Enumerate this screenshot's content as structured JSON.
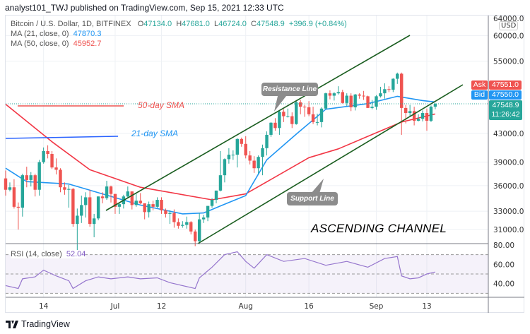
{
  "header": {
    "published": "analyst101_TWJ published on TradingView.com, Sep 15, 2021 12:33 UTC"
  },
  "legend": {
    "symbol": "Bitcoin / U.S. Dollar, 1D, BITFINEX",
    "o_label": "O",
    "o": "47134.0",
    "h_label": "H",
    "h": "47681.0",
    "l_label": "L",
    "l": "46724.0",
    "c_label": "C",
    "c": "47548.9",
    "change": "+396.9 (+0.84%)",
    "ma21_label": "MA (21, close, 0)",
    "ma21": "47870.3",
    "ma50_label": "MA (50, close, 0)",
    "ma50": "45952.7",
    "rsi_label": "RSI (14, close)",
    "rsi": "52.04"
  },
  "price_axis": {
    "currency": "USD",
    "ticks": [
      "64000.0",
      "60000.0",
      "55000.0",
      "43000.0",
      "39000.0",
      "36000.0",
      "33000.0",
      "31000.0"
    ],
    "tick_values": [
      64000,
      60000,
      55000,
      43000,
      39000,
      36000,
      33000,
      31000
    ]
  },
  "rsi_axis": {
    "ticks": [
      "80.00",
      "60.00",
      "40.00"
    ],
    "tick_values": [
      80,
      60,
      40
    ],
    "bands": [
      70,
      50,
      30
    ]
  },
  "time_axis": {
    "ticks": [
      {
        "label": "14",
        "date": "2021-06-14"
      },
      {
        "label": "Jul",
        "date": "2021-07-01"
      },
      {
        "label": "12",
        "date": "2021-07-12"
      },
      {
        "label": "Aug",
        "date": "2021-08-01"
      },
      {
        "label": "16",
        "date": "2021-08-16"
      },
      {
        "label": "Sep",
        "date": "2021-09-01"
      },
      {
        "label": "13",
        "date": "2021-09-13"
      }
    ]
  },
  "quotes": {
    "ask_label": "Ask",
    "ask": "47551.0",
    "bid_label": "Bid",
    "bid": "47550.0",
    "last": "47548.9",
    "countdown": "11:26:42"
  },
  "annotations": {
    "resistance": "Resistance Line",
    "support": "Support Line",
    "title": "ASCENDING CHANNEL",
    "sma50": "50-day SMA",
    "sma21": "21-day SMA"
  },
  "footer": {
    "brand": "TradingView"
  },
  "colors": {
    "up": "#26a69a",
    "down": "#ef5350",
    "ma21": "#2196f3",
    "ma50": "#f23645",
    "rsi": "#9575cd",
    "channel": "#1b5e20",
    "ask": "#ef5350",
    "bid": "#2196f3"
  },
  "chart_data": {
    "type": "candlestick",
    "scale": "log",
    "candles": [
      [
        "2021-06-05",
        36900,
        37900,
        34800,
        35500
      ],
      [
        "2021-06-06",
        35500,
        36400,
        35300,
        35800
      ],
      [
        "2021-06-07",
        35800,
        36800,
        33300,
        33500
      ],
      [
        "2021-06-08",
        33500,
        34000,
        31000,
        33400
      ],
      [
        "2021-06-09",
        33400,
        37500,
        32400,
        37300
      ],
      [
        "2021-06-10",
        37300,
        38400,
        35800,
        36700
      ],
      [
        "2021-06-11",
        36700,
        37700,
        35900,
        37300
      ],
      [
        "2021-06-12",
        37300,
        37500,
        34700,
        35500
      ],
      [
        "2021-06-13",
        35500,
        39300,
        34800,
        39000
      ],
      [
        "2021-06-14",
        39000,
        41000,
        38800,
        40500
      ],
      [
        "2021-06-15",
        40500,
        41300,
        39500,
        40100
      ],
      [
        "2021-06-16",
        40100,
        40500,
        38100,
        38300
      ],
      [
        "2021-06-17",
        38300,
        39500,
        37400,
        38000
      ],
      [
        "2021-06-18",
        38000,
        38200,
        35200,
        35800
      ],
      [
        "2021-06-19",
        35800,
        36400,
        34900,
        35500
      ],
      [
        "2021-06-20",
        35500,
        36100,
        33400,
        35600
      ],
      [
        "2021-06-21",
        35600,
        35700,
        31300,
        31600
      ],
      [
        "2021-06-22",
        31600,
        33300,
        28800,
        32500
      ],
      [
        "2021-06-23",
        32500,
        34800,
        31700,
        33700
      ],
      [
        "2021-06-24",
        33700,
        35200,
        32300,
        34600
      ],
      [
        "2021-06-25",
        34600,
        35500,
        31300,
        31600
      ],
      [
        "2021-06-26",
        31600,
        32700,
        30200,
        32200
      ],
      [
        "2021-06-27",
        32200,
        34700,
        32000,
        34700
      ],
      [
        "2021-06-28",
        34700,
        35200,
        33900,
        34500
      ],
      [
        "2021-06-29",
        34500,
        36600,
        34300,
        35900
      ],
      [
        "2021-06-30",
        35900,
        36000,
        34000,
        35000
      ],
      [
        "2021-07-01",
        35000,
        35000,
        32700,
        33500
      ],
      [
        "2021-07-02",
        33500,
        33900,
        32700,
        33800
      ],
      [
        "2021-07-03",
        33800,
        34900,
        33300,
        34700
      ],
      [
        "2021-07-04",
        34700,
        35900,
        34500,
        35300
      ],
      [
        "2021-07-05",
        35300,
        35300,
        33200,
        33700
      ],
      [
        "2021-07-06",
        33700,
        35000,
        33500,
        34200
      ],
      [
        "2021-07-07",
        34200,
        35100,
        33800,
        33900
      ],
      [
        "2021-07-08",
        33900,
        33900,
        32100,
        32900
      ],
      [
        "2021-07-09",
        32900,
        34100,
        32300,
        33800
      ],
      [
        "2021-07-10",
        33800,
        34200,
        33100,
        33500
      ],
      [
        "2021-07-11",
        33500,
        34600,
        33400,
        34300
      ],
      [
        "2021-07-12",
        34300,
        34600,
        32700,
        33100
      ],
      [
        "2021-07-13",
        33100,
        33300,
        32300,
        32700
      ],
      [
        "2021-07-14",
        32700,
        33100,
        31600,
        32800
      ],
      [
        "2021-07-15",
        32800,
        33200,
        31200,
        31800
      ],
      [
        "2021-07-16",
        31800,
        32200,
        31100,
        31400
      ],
      [
        "2021-07-17",
        31400,
        31900,
        31200,
        31500
      ],
      [
        "2021-07-18",
        31500,
        32400,
        31100,
        31800
      ],
      [
        "2021-07-19",
        31800,
        31900,
        30500,
        30800
      ],
      [
        "2021-07-20",
        30800,
        31000,
        29300,
        29800
      ],
      [
        "2021-07-21",
        29800,
        32800,
        29500,
        32100
      ],
      [
        "2021-07-22",
        32100,
        32600,
        31700,
        32300
      ],
      [
        "2021-07-23",
        32300,
        33600,
        31900,
        33600
      ],
      [
        "2021-07-24",
        33600,
        34500,
        33400,
        34300
      ],
      [
        "2021-07-25",
        34300,
        35400,
        33900,
        35400
      ],
      [
        "2021-07-26",
        35400,
        40500,
        35300,
        37300
      ],
      [
        "2021-07-27",
        37300,
        39500,
        36400,
        39400
      ],
      [
        "2021-07-28",
        39400,
        40900,
        38800,
        40000
      ],
      [
        "2021-07-29",
        40000,
        40600,
        39300,
        40000
      ],
      [
        "2021-07-30",
        40000,
        42300,
        38300,
        42200
      ],
      [
        "2021-07-31",
        42200,
        42400,
        41100,
        41500
      ],
      [
        "2021-08-01",
        41500,
        42600,
        39500,
        39900
      ],
      [
        "2021-08-02",
        39900,
        40500,
        38700,
        39200
      ],
      [
        "2021-08-03",
        39200,
        39800,
        37600,
        38200
      ],
      [
        "2021-08-04",
        38200,
        39900,
        37500,
        39700
      ],
      [
        "2021-08-05",
        39700,
        41400,
        37300,
        40900
      ],
      [
        "2021-08-06",
        40900,
        43300,
        39900,
        42800
      ],
      [
        "2021-08-07",
        42800,
        44700,
        42500,
        44600
      ],
      [
        "2021-08-08",
        44600,
        45300,
        43400,
        43800
      ],
      [
        "2021-08-09",
        43800,
        46500,
        42800,
        46300
      ],
      [
        "2021-08-10",
        46300,
        46700,
        44700,
        45600
      ],
      [
        "2021-08-11",
        45600,
        46800,
        45400,
        45600
      ],
      [
        "2021-08-12",
        45600,
        46200,
        43800,
        44400
      ],
      [
        "2021-08-13",
        44400,
        48100,
        44300,
        47800
      ],
      [
        "2021-08-14",
        47800,
        48200,
        45900,
        47100
      ],
      [
        "2021-08-15",
        47100,
        47400,
        45500,
        47000
      ],
      [
        "2021-08-16",
        47000,
        48000,
        45600,
        45900
      ],
      [
        "2021-08-17",
        45900,
        47100,
        44400,
        44700
      ],
      [
        "2021-08-18",
        44700,
        46000,
        44200,
        44700
      ],
      [
        "2021-08-19",
        44700,
        47000,
        43900,
        46800
      ],
      [
        "2021-08-20",
        46800,
        49400,
        46700,
        49300
      ],
      [
        "2021-08-21",
        49300,
        49800,
        48300,
        48900
      ],
      [
        "2021-08-22",
        48900,
        49500,
        48100,
        49300
      ],
      [
        "2021-08-23",
        49300,
        50500,
        49100,
        49500
      ],
      [
        "2021-08-24",
        49500,
        49900,
        47600,
        47700
      ],
      [
        "2021-08-25",
        47700,
        49300,
        47200,
        48900
      ],
      [
        "2021-08-26",
        48900,
        49300,
        46400,
        47000
      ],
      [
        "2021-08-27",
        47000,
        49200,
        46500,
        49100
      ],
      [
        "2021-08-28",
        49100,
        49300,
        48400,
        48900
      ],
      [
        "2021-08-29",
        48900,
        49700,
        48200,
        48800
      ],
      [
        "2021-08-30",
        48800,
        48900,
        46900,
        46900
      ],
      [
        "2021-08-31",
        46900,
        48200,
        46700,
        47100
      ],
      [
        "2021-09-01",
        47100,
        49000,
        46600,
        48800
      ],
      [
        "2021-09-02",
        48800,
        50400,
        48600,
        49300
      ],
      [
        "2021-09-03",
        49300,
        51000,
        48400,
        50000
      ],
      [
        "2021-09-04",
        50000,
        50500,
        49500,
        49900
      ],
      [
        "2021-09-05",
        49900,
        51900,
        49500,
        51800
      ],
      [
        "2021-09-06",
        51800,
        52900,
        50900,
        52700
      ],
      [
        "2021-09-07",
        52700,
        52900,
        42800,
        46900
      ],
      [
        "2021-09-08",
        46900,
        47400,
        44500,
        46100
      ],
      [
        "2021-09-09",
        46100,
        47400,
        45500,
        46400
      ],
      [
        "2021-09-10",
        46400,
        47100,
        44200,
        44900
      ],
      [
        "2021-09-11",
        44900,
        45900,
        44800,
        45200
      ],
      [
        "2021-09-12",
        45200,
        46500,
        44800,
        46100
      ],
      [
        "2021-09-13",
        46100,
        46800,
        43400,
        44900
      ],
      [
        "2021-09-14",
        44900,
        47300,
        44700,
        47100
      ],
      [
        "2021-09-15",
        47100,
        47700,
        46700,
        47549
      ]
    ],
    "ma21": [
      [
        "2021-06-05",
        38200
      ],
      [
        "2021-06-10",
        36500
      ],
      [
        "2021-06-20",
        36200
      ],
      [
        "2021-06-28",
        35000
      ],
      [
        "2021-07-07",
        33700
      ],
      [
        "2021-07-17",
        32700
      ],
      [
        "2021-07-22",
        32800
      ],
      [
        "2021-07-26",
        33600
      ],
      [
        "2021-08-01",
        34800
      ],
      [
        "2021-08-06",
        39300
      ],
      [
        "2021-08-13",
        42900
      ],
      [
        "2021-08-20",
        46700
      ],
      [
        "2021-08-30",
        47600
      ],
      [
        "2021-09-06",
        48800
      ],
      [
        "2021-09-12",
        48100
      ],
      [
        "2021-09-15",
        47870
      ]
    ],
    "ma50": [
      [
        "2021-06-05",
        47500
      ],
      [
        "2021-06-16",
        41800
      ],
      [
        "2021-06-25",
        38000
      ],
      [
        "2021-07-07",
        35800
      ],
      [
        "2021-07-24",
        34300
      ],
      [
        "2021-08-01",
        35000
      ],
      [
        "2021-08-16",
        39600
      ],
      [
        "2021-08-23",
        40800
      ],
      [
        "2021-09-07",
        44700
      ],
      [
        "2021-09-15",
        45950
      ]
    ],
    "rsi": [
      [
        "2021-06-05",
        38
      ],
      [
        "2021-06-08",
        35
      ],
      [
        "2021-06-09",
        45
      ],
      [
        "2021-06-12",
        47
      ],
      [
        "2021-06-14",
        54
      ],
      [
        "2021-06-17",
        48
      ],
      [
        "2021-06-20",
        43
      ],
      [
        "2021-06-21",
        35
      ],
      [
        "2021-06-24",
        43
      ],
      [
        "2021-06-27",
        47
      ],
      [
        "2021-06-30",
        45
      ],
      [
        "2021-07-04",
        47
      ],
      [
        "2021-07-07",
        45
      ],
      [
        "2021-07-11",
        46
      ],
      [
        "2021-07-14",
        41
      ],
      [
        "2021-07-16",
        39
      ],
      [
        "2021-07-20",
        35
      ],
      [
        "2021-07-21",
        46
      ],
      [
        "2021-07-24",
        57
      ],
      [
        "2021-07-27",
        70
      ],
      [
        "2021-07-30",
        73
      ],
      [
        "2021-08-01",
        63
      ],
      [
        "2021-08-03",
        56
      ],
      [
        "2021-08-06",
        70
      ],
      [
        "2021-08-10",
        63
      ],
      [
        "2021-08-15",
        66
      ],
      [
        "2021-08-20",
        59
      ],
      [
        "2021-08-25",
        63
      ],
      [
        "2021-08-30",
        57
      ],
      [
        "2021-09-03",
        66
      ],
      [
        "2021-09-06",
        68
      ],
      [
        "2021-09-07",
        48
      ],
      [
        "2021-09-09",
        45
      ],
      [
        "2021-09-11",
        46
      ],
      [
        "2021-09-13",
        50
      ],
      [
        "2021-09-15",
        52.04
      ]
    ]
  }
}
